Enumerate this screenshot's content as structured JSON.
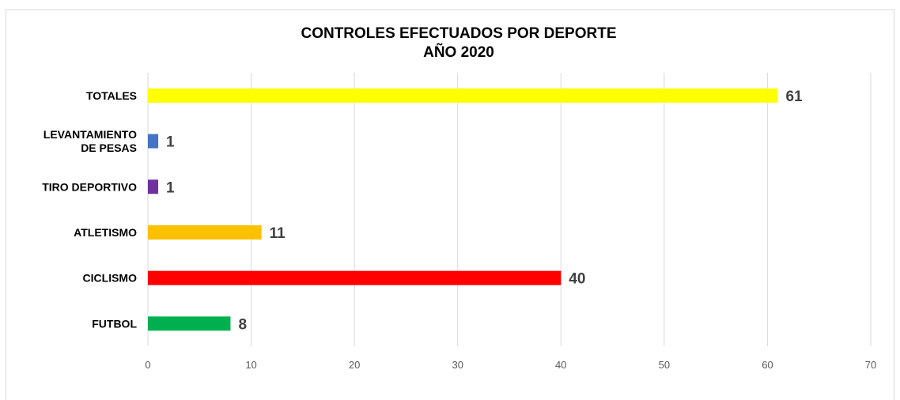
{
  "chart_data": {
    "type": "bar",
    "orientation": "horizontal",
    "title": [
      "CONTROLES EFECTUADOS POR DEPORTE",
      "AÑO 2020"
    ],
    "xlabel": "",
    "ylabel": "",
    "xlim": [
      0,
      70
    ],
    "ticks": [
      "0",
      "10",
      "20",
      "30",
      "40",
      "50",
      "60",
      "70"
    ],
    "grid": true,
    "legend": "none",
    "categories": [
      [
        "TOTALES"
      ],
      [
        "LEVANTAMIENTO",
        "DE PESAS"
      ],
      [
        "TIRO DEPORTIVO"
      ],
      [
        "ATLETISMO"
      ],
      [
        "CICLISMO"
      ],
      [
        "FUTBOL"
      ]
    ],
    "values": [
      61,
      1,
      1,
      11,
      40,
      8
    ],
    "colors": [
      "#ffff00",
      "#4472c4",
      "#7030a0",
      "#ffc000",
      "#ff0000",
      "#00b050"
    ],
    "data_labels": [
      "61",
      "1",
      "1",
      "11",
      "40",
      "8"
    ]
  }
}
